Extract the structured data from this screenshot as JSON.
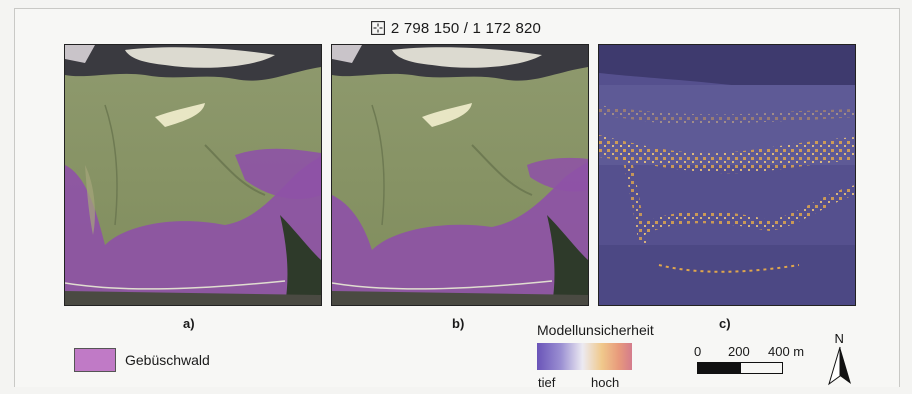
{
  "coordinates": {
    "icon": "crosshair-icon",
    "text": "2 798 150 / 1 172 820"
  },
  "panels": [
    {
      "label": "a)"
    },
    {
      "label": "b)"
    },
    {
      "label": "c)"
    }
  ],
  "legend": {
    "class_label": "Gebüschwald",
    "class_color": "#c07ac6"
  },
  "uncertainty": {
    "title": "Modellunsicherheit",
    "low": "tief",
    "high": "hoch"
  },
  "scalebar": {
    "labels": [
      "0",
      "200",
      "400 m"
    ]
  },
  "north_arrow": {
    "label": "N"
  }
}
